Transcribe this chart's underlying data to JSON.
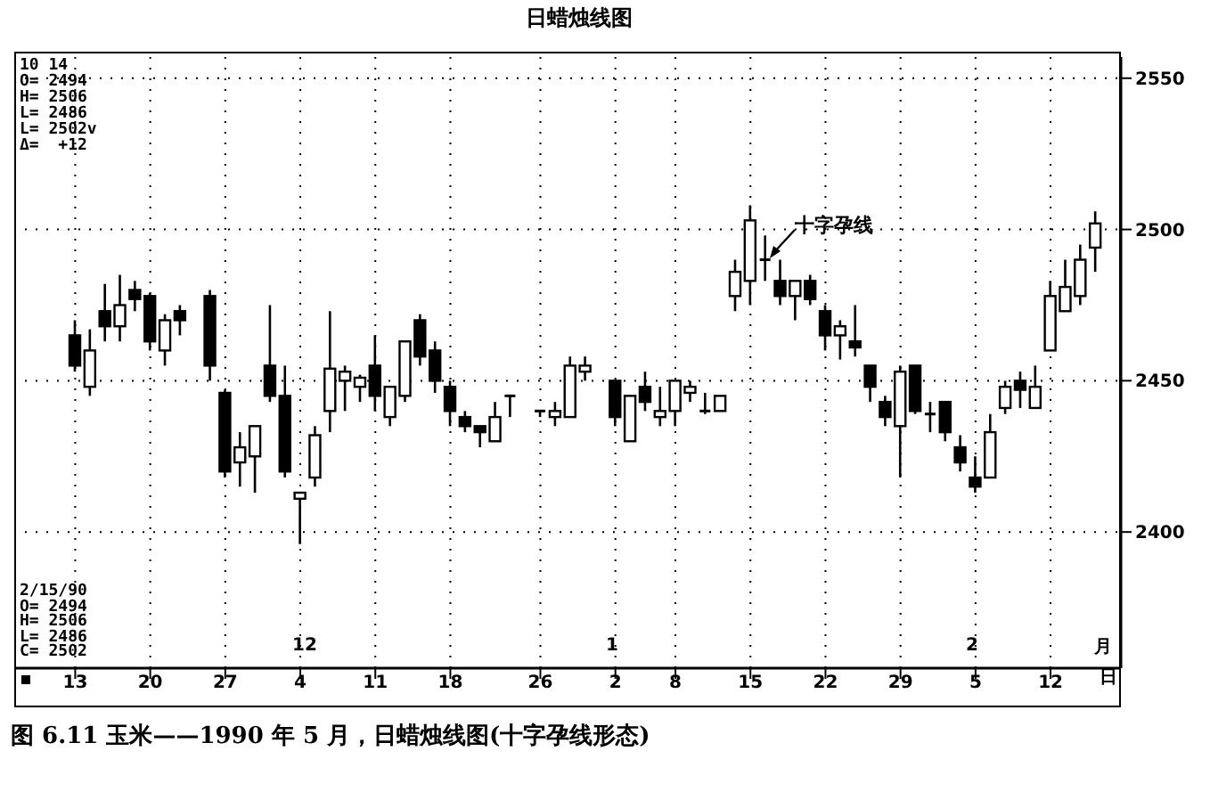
{
  "chart_data": {
    "type": "candlestick",
    "title": "日蜡烛线图",
    "categories": [
      "13",
      null,
      null,
      null,
      null,
      "20",
      null,
      null,
      null,
      null,
      "27",
      null,
      null,
      null,
      null,
      "4",
      null,
      null,
      null,
      null,
      "11",
      null,
      null,
      null,
      null,
      "18",
      null,
      null,
      null,
      null,
      null,
      "26",
      null,
      null,
      null,
      null,
      "2",
      null,
      null,
      null,
      "8",
      null,
      null,
      null,
      null,
      "15",
      null,
      null,
      null,
      null,
      "22",
      null,
      null,
      null,
      null,
      "29",
      null,
      null,
      null,
      null,
      "5",
      null,
      null,
      null,
      null,
      "12",
      null,
      null,
      null
    ],
    "ohlc": [
      [
        2465,
        2470,
        2453,
        2455
      ],
      [
        2448,
        2467,
        2445,
        2460
      ],
      [
        2473,
        2482,
        2463,
        2468
      ],
      [
        2468,
        2485,
        2463,
        2475
      ],
      [
        2480,
        2483,
        2473,
        2477
      ],
      [
        2478,
        2479,
        2460,
        2463
      ],
      [
        2460,
        2472,
        2455,
        2470
      ],
      [
        2473,
        2475,
        2465,
        2470
      ],
      null,
      [
        2478,
        2480,
        2450,
        2455
      ],
      [
        2446,
        2447,
        2418,
        2420
      ],
      [
        2423,
        2433,
        2415,
        2428
      ],
      [
        2425,
        2435,
        2413,
        2435
      ],
      [
        2455,
        2475,
        2443,
        2445
      ],
      [
        2445,
        2455,
        2418,
        2420
      ],
      [
        2411,
        2413,
        2396,
        2413
      ],
      [
        2418,
        2435,
        2415,
        2432
      ],
      [
        2440,
        2473,
        2433,
        2454
      ],
      [
        2450,
        2455,
        2440,
        2453
      ],
      [
        2448,
        2452,
        2443,
        2451
      ],
      [
        2455,
        2465,
        2440,
        2445
      ],
      [
        2438,
        2448,
        2435,
        2448
      ],
      [
        2445,
        2463,
        2443,
        2463
      ],
      [
        2470,
        2472,
        2455,
        2458
      ],
      [
        2460,
        2463,
        2446,
        2450
      ],
      [
        2448,
        2450,
        2435,
        2440
      ],
      [
        2438,
        2440,
        2433,
        2435
      ],
      [
        2435,
        2435,
        2428,
        2433
      ],
      [
        2430,
        2443,
        2430,
        2438
      ],
      [
        2445,
        2445,
        2438,
        2445
      ],
      null,
      [
        2440,
        2440,
        2438,
        2440
      ],
      [
        2438,
        2443,
        2435,
        2440
      ],
      [
        2438,
        2458,
        2438,
        2455
      ],
      [
        2453,
        2458,
        2450,
        2455
      ],
      null,
      [
        2450,
        2450,
        2435,
        2438
      ],
      [
        2430,
        2445,
        2430,
        2445
      ],
      [
        2448,
        2453,
        2440,
        2443
      ],
      [
        2438,
        2448,
        2435,
        2440
      ],
      [
        2440,
        2450,
        2435,
        2450
      ],
      [
        2446,
        2450,
        2443,
        2448
      ],
      [
        2440,
        2446,
        2439,
        2440
      ],
      [
        2440,
        2445,
        2440,
        2445
      ],
      [
        2478,
        2490,
        2473,
        2486
      ],
      [
        2483,
        2508,
        2475,
        2503
      ],
      [
        2490,
        2498,
        2483,
        2490
      ],
      [
        2483,
        2490,
        2475,
        2478
      ],
      [
        2478,
        2483,
        2470,
        2483
      ],
      [
        2483,
        2485,
        2475,
        2477
      ],
      [
        2473,
        2475,
        2460,
        2465
      ],
      [
        2465,
        2470,
        2457,
        2468
      ],
      [
        2463,
        2475,
        2458,
        2461
      ],
      [
        2455,
        2455,
        2443,
        2448
      ],
      [
        2443,
        2445,
        2435,
        2438
      ],
      [
        2435,
        2455,
        2418,
        2453
      ],
      [
        2455,
        2455,
        2439,
        2440
      ],
      [
        2439,
        2443,
        2433,
        2439
      ],
      [
        2443,
        2443,
        2430,
        2433
      ],
      [
        2428,
        2432,
        2420,
        2423
      ],
      [
        2418,
        2425,
        2413,
        2415
      ],
      [
        2418,
        2439,
        2418,
        2433
      ],
      [
        2441,
        2450,
        2439,
        2448
      ],
      [
        2450,
        2453,
        2441,
        2447
      ],
      [
        2441,
        2455,
        2441,
        2448
      ],
      [
        2460,
        2483,
        2460,
        2478
      ],
      [
        2473,
        2490,
        2473,
        2481
      ],
      [
        2478,
        2495,
        2475,
        2490
      ],
      [
        2494,
        2506,
        2486,
        2502
      ]
    ],
    "ylim": [
      2355,
      2557
    ],
    "yticks": [
      2550,
      2500,
      2450,
      2400
    ],
    "grid": true,
    "annotations": [
      "10 14",
      "O= 2494\nH= 2506\nL= 2486\nL= 2502v\nΔ=  +12",
      "2/15/90\nO= 2494\nH= 2506\nL= 2486\nC= 2502",
      "十字孕线",
      "月",
      "日",
      "图 6.11   玉米——1990 年 5 月，日蜡烛线图(十字孕线形态)",
      "12",
      "1",
      "2"
    ]
  }
}
